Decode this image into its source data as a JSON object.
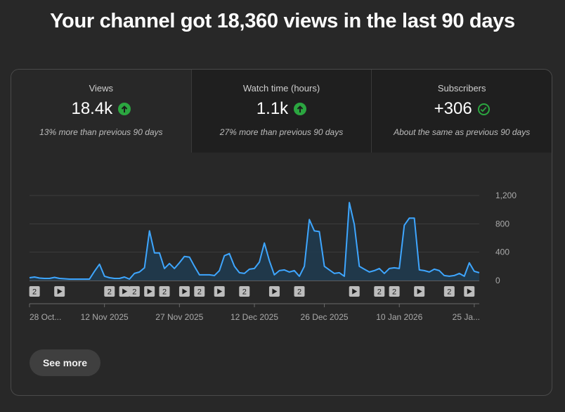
{
  "headline": "Your channel got 18,360 views in the last 90 days",
  "tabs": [
    {
      "label": "Views",
      "value": "18.4k",
      "icon": "arrow-up-circle-icon",
      "comparison": "13% more than previous 90 days"
    },
    {
      "label": "Watch time (hours)",
      "value": "1.1k",
      "icon": "arrow-up-circle-icon",
      "comparison": "27% more than previous 90 days"
    },
    {
      "label": "Subscribers",
      "value": "+306",
      "icon": "check-circle-icon",
      "comparison": "About the same as previous 90 days"
    }
  ],
  "colors": {
    "line": "#3ea6ff",
    "fill": "#1f3a4e",
    "positive": "#2ba640",
    "marker": "#bdbdbd"
  },
  "chart_data": {
    "type": "area",
    "title": "Views",
    "xlabel": "",
    "ylabel": "",
    "y_ticks": [
      0,
      400,
      800,
      1200
    ],
    "y_tick_labels": [
      "0",
      "400",
      "800",
      "1,200"
    ],
    "ylim": [
      0,
      1200
    ],
    "x_tick_labels": [
      "28 Oct...",
      "12 Nov 2025",
      "27 Nov 2025",
      "12 Dec 2025",
      "26 Dec 2025",
      "10 Jan 2026",
      "25 Ja..."
    ],
    "x_tick_days": [
      0,
      15,
      30,
      45,
      59,
      74,
      89
    ],
    "values": [
      40,
      50,
      35,
      30,
      30,
      45,
      30,
      25,
      20,
      20,
      20,
      20,
      20,
      130,
      230,
      60,
      40,
      30,
      30,
      50,
      20,
      100,
      120,
      180,
      700,
      390,
      390,
      170,
      240,
      170,
      250,
      340,
      330,
      200,
      80,
      80,
      80,
      70,
      140,
      350,
      380,
      200,
      110,
      100,
      160,
      170,
      260,
      530,
      280,
      80,
      140,
      150,
      120,
      140,
      60,
      200,
      860,
      700,
      690,
      200,
      150,
      100,
      110,
      60,
      1100,
      790,
      200,
      160,
      120,
      140,
      170,
      100,
      170,
      180,
      170,
      780,
      880,
      880,
      150,
      140,
      120,
      160,
      140,
      70,
      60,
      70,
      100,
      60,
      250,
      130,
      110
    ],
    "markers": [
      {
        "day": 1,
        "type": "number",
        "label": "2"
      },
      {
        "day": 6,
        "type": "play"
      },
      {
        "day": 16,
        "type": "number",
        "label": "2"
      },
      {
        "day": 19,
        "type": "play"
      },
      {
        "day": 21,
        "type": "number",
        "label": "2"
      },
      {
        "day": 24,
        "type": "play"
      },
      {
        "day": 27,
        "type": "number",
        "label": "2"
      },
      {
        "day": 31,
        "type": "play"
      },
      {
        "day": 34,
        "type": "number",
        "label": "2"
      },
      {
        "day": 38,
        "type": "play"
      },
      {
        "day": 43,
        "type": "number",
        "label": "2"
      },
      {
        "day": 49,
        "type": "play"
      },
      {
        "day": 54,
        "type": "number",
        "label": "2"
      },
      {
        "day": 65,
        "type": "play"
      },
      {
        "day": 70,
        "type": "number",
        "label": "2"
      },
      {
        "day": 73,
        "type": "number",
        "label": "2"
      },
      {
        "day": 78,
        "type": "play"
      },
      {
        "day": 84,
        "type": "number",
        "label": "2"
      },
      {
        "day": 88,
        "type": "play"
      }
    ]
  },
  "see_more": "See more"
}
